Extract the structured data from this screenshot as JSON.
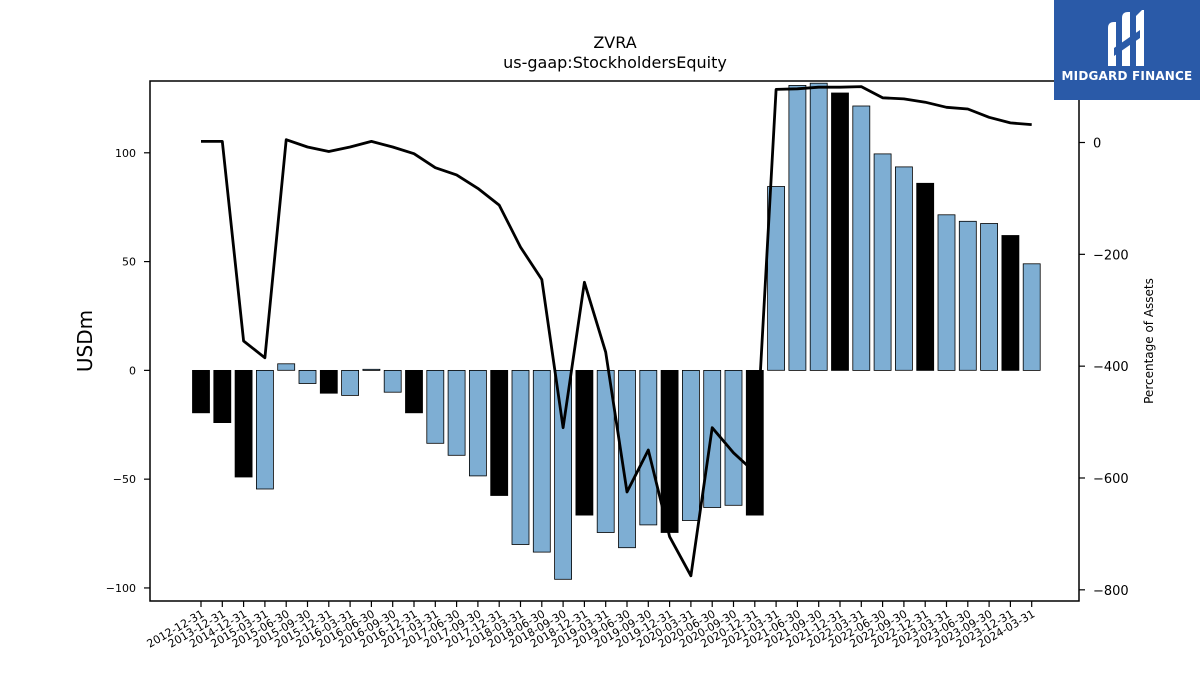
{
  "brand": {
    "name": "MIDGARD FINANCE",
    "color": "#2a5aa8"
  },
  "chart_data": {
    "type": "bar",
    "title": "ZVRA",
    "subtitle": "us-gaap:StockholdersEquity",
    "ylabel": "USDm",
    "y2label": "Percentage of Assets",
    "ylim": [
      -106,
      133
    ],
    "y2lim": [
      -820,
      110
    ],
    "yticks": [
      -100,
      -50,
      0,
      50,
      100
    ],
    "y2ticks": [
      -800,
      -600,
      -400,
      -200,
      0
    ],
    "ytick_labels": [
      "−100",
      "−50",
      "0",
      "50",
      "100"
    ],
    "y2tick_labels": [
      "−800",
      "−600",
      "−400",
      "−200",
      "0"
    ],
    "grid": false,
    "colors": {
      "q4_bar": "#000000",
      "other_bar": "#7eaed3",
      "line": "#000000"
    },
    "categories": [
      "2012-12-31",
      "2013-12-31",
      "2014-12-31",
      "2015-03-31",
      "2015-06-30",
      "2015-09-30",
      "2015-12-31",
      "2016-03-31",
      "2016-06-30",
      "2016-09-30",
      "2016-12-31",
      "2017-03-31",
      "2017-06-30",
      "2017-09-30",
      "2017-12-31",
      "2018-03-31",
      "2018-06-30",
      "2018-09-30",
      "2018-12-31",
      "2019-03-31",
      "2019-06-30",
      "2019-09-30",
      "2019-12-31",
      "2020-03-31",
      "2020-06-30",
      "2020-09-30",
      "2020-12-31",
      "2021-03-31",
      "2021-06-30",
      "2021-09-30",
      "2021-12-31",
      "2022-03-31",
      "2022-06-30",
      "2022-09-30",
      "2022-12-31",
      "2023-03-31",
      "2023-06-30",
      "2023-09-30",
      "2023-12-31",
      "2024-03-31"
    ],
    "series": [
      {
        "axis": "left",
        "kind": "bar",
        "values": [
          -19.5,
          -24,
          -49,
          -54.5,
          3,
          -6,
          -10.5,
          -11.5,
          0.5,
          -10,
          -19.5,
          -33.5,
          -39,
          -48.5,
          -57.5,
          -80,
          -83.5,
          -96,
          -66.5,
          -74.5,
          -81.5,
          -71,
          -74.5,
          -69,
          -63,
          -62,
          -66.5,
          84.5,
          131,
          132,
          127.5,
          121.5,
          99.5,
          93.5,
          86,
          71.5,
          68.5,
          67.5,
          62,
          49
        ]
      },
      {
        "axis": "right",
        "kind": "line",
        "values": [
          2,
          2,
          -355,
          -385,
          5,
          -8,
          -16,
          -8,
          2,
          -8,
          -20,
          -45,
          -58,
          -82,
          -112,
          -187,
          -245,
          -510,
          -250,
          -375,
          -625,
          -550,
          -705,
          -775,
          -510,
          -555,
          -590,
          95,
          96,
          99,
          99,
          100,
          80,
          78,
          72,
          63,
          60,
          45,
          35,
          32
        ]
      }
    ]
  }
}
